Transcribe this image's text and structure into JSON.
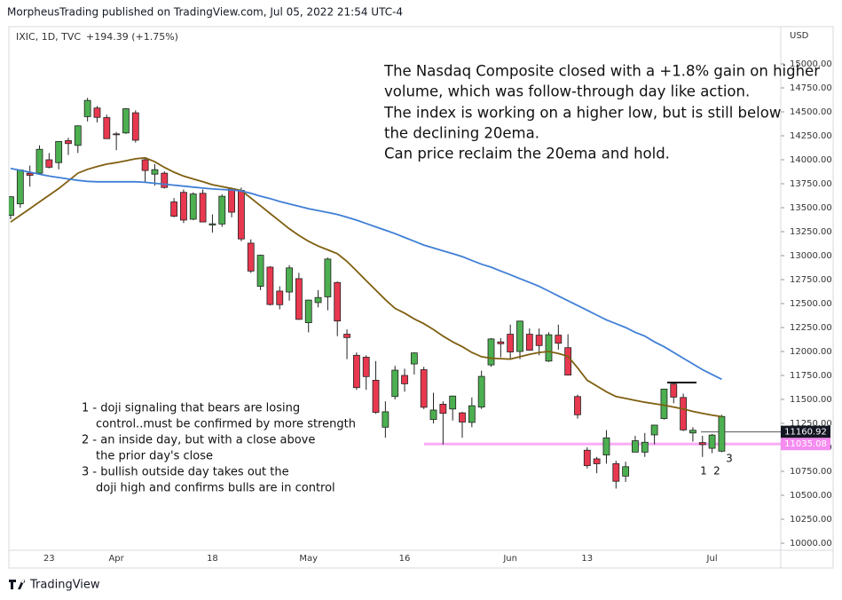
{
  "chart_data": {
    "type": "candlestick",
    "header": "MorpheusTrading published on TradingView.com, Jul 05, 2022 21:54 UTC-4",
    "symbol": "IXIC, 1D, TVC",
    "change": "+194.39 (+1.75%)",
    "currency": "USD",
    "footer": "TradingView",
    "commentary": [
      "The Nasdaq Composite closed with a +1.8% gain on higher",
      "volume, which was follow-through day like action.",
      "The index is working on a higher low, but is still below",
      "the declining 20ema.",
      " Can price reclaim the 20ema and hold."
    ],
    "notes": [
      "1 - doji signaling that bears are losing",
      "control..must be confirmed by more strength",
      "2 - an inside day, but with a close above",
      "the prior day's close",
      "3 - bullish outside day takes out the",
      "doji high and confirms bulls are in control"
    ],
    "markers": [
      "1",
      "2",
      "3"
    ],
    "categories": [
      null,
      null,
      null,
      null,
      "23",
      null,
      null,
      null,
      null,
      null,
      null,
      "Apr",
      null,
      null,
      null,
      null,
      null,
      null,
      null,
      null,
      null,
      "18",
      null,
      null,
      null,
      null,
      null,
      null,
      null,
      null,
      null,
      "May",
      null,
      null,
      null,
      null,
      null,
      null,
      null,
      null,
      null,
      "16",
      null,
      null,
      null,
      null,
      null,
      null,
      null,
      null,
      null,
      null,
      "Jun",
      null,
      null,
      null,
      null,
      null,
      null,
      null,
      "13",
      null,
      null,
      null,
      null,
      null,
      null,
      null,
      null,
      null,
      null,
      null,
      null,
      "Jul",
      null
    ],
    "open": [
      13420,
      13540,
      13860,
      13860,
      14000,
      13970,
      14200,
      14150,
      14450,
      14540,
      14440,
      14270,
      14280,
      14490,
      14000,
      13850,
      13860,
      13560,
      13660,
      13380,
      13650,
      13320,
      13330,
      13700,
      13680,
      13130,
      12680,
      12880,
      12630,
      12620,
      12760,
      12300,
      12510,
      12570,
      12720,
      12180,
      11960,
      11940,
      11700,
      11210,
      11530,
      11750,
      11870,
      11810,
      11290,
      11450,
      11400,
      11360,
      11260,
      11420,
      11860,
      12100,
      12180,
      12000,
      12180,
      12170,
      11900,
      12170,
      12040,
      11530,
      10970,
      10880,
      10920,
      10830,
      10700,
      10950,
      10950,
      11130,
      11300,
      11660,
      11520,
      11150,
      11050,
      10990,
      10960
    ],
    "high": [
      13620,
      13900,
      13940,
      14150,
      14070,
      14195,
      14230,
      14360,
      14646,
      14560,
      14470,
      14290,
      14540,
      14515,
      14020,
      13955,
      13880,
      13600,
      13690,
      13660,
      13690,
      13430,
      13640,
      13710,
      13710,
      13170,
      13010,
      12890,
      12680,
      12900,
      12820,
      12540,
      12640,
      12980,
      12730,
      12230,
      11990,
      11960,
      11900,
      11480,
      11850,
      11820,
      11990,
      11840,
      11570,
      11480,
      11540,
      11370,
      11520,
      11800,
      12140,
      12140,
      12280,
      12320,
      12240,
      12240,
      12200,
      12280,
      12180,
      11550,
      11000,
      10900,
      11180,
      10860,
      10850,
      11120,
      11150,
      11230,
      11610,
      11670,
      11560,
      11210,
      11120,
      11140,
      11340
    ],
    "low": [
      13380,
      13500,
      13720,
      13850,
      13910,
      13900,
      14050,
      14070,
      14400,
      14390,
      14220,
      14100,
      14270,
      14180,
      13760,
      13730,
      13700,
      13400,
      13340,
      13370,
      13350,
      13240,
      13300,
      13400,
      13150,
      12820,
      12640,
      12480,
      12440,
      12530,
      12330,
      12200,
      12460,
      12430,
      12160,
      11920,
      11600,
      11600,
      11350,
      11100,
      11500,
      11580,
      11760,
      11400,
      11250,
      11030,
      11280,
      11100,
      11210,
      11400,
      11840,
      11940,
      11920,
      11920,
      12010,
      11960,
      11890,
      12020,
      11750,
      11300,
      10780,
      10730,
      10830,
      10570,
      10640,
      10950,
      10900,
      11030,
      11290,
      11460,
      11170,
      11060,
      10900,
      10940,
      10950
    ],
    "close": [
      13614,
      13893,
      13838,
      14109,
      13922,
      14191,
      14169,
      14354,
      14619,
      14442,
      14220,
      14261,
      14532,
      14204,
      13888,
      13897,
      13711,
      13411,
      13371,
      13643,
      13351,
      13332,
      13619,
      13453,
      13174,
      12839,
      13004,
      12490,
      12488,
      12872,
      12335,
      12536,
      12563,
      12964,
      12318,
      12145,
      11623,
      11738,
      11364,
      11371,
      11805,
      11663,
      11985,
      11418,
      11389,
      11355,
      11535,
      11264,
      11434,
      11740,
      12131,
      12081,
      11995,
      12317,
      12013,
      12062,
      12175,
      12086,
      11754,
      11340,
      10809,
      10829,
      11099,
      10646,
      10798,
      11069,
      11053,
      11232,
      11608,
      11524,
      11182,
      11178,
      11029,
      11128,
      11322
    ],
    "up_color": "#4caf50",
    "down_color": "#e8384f",
    "lines": [
      {
        "color": "#7f5f10",
        "values": [
          13350,
          13420,
          13490,
          13560,
          13630,
          13700,
          13780,
          13860,
          13900,
          13930,
          13955,
          13970,
          13990,
          14010,
          14020,
          13980,
          13920,
          13870,
          13830,
          13800,
          13770,
          13740,
          13720,
          13700,
          13680,
          13600,
          13520,
          13440,
          13360,
          13280,
          13210,
          13150,
          13100,
          13060,
          13020,
          12940,
          12840,
          12740,
          12640,
          12540,
          12450,
          12400,
          12340,
          12290,
          12230,
          12160,
          12100,
          12050,
          11990,
          11945,
          11930,
          11925,
          11920,
          11945,
          11970,
          11990,
          12000,
          11980,
          11950,
          11830,
          11700,
          11640,
          11580,
          11530,
          11510,
          11490,
          11470,
          11455,
          11440,
          11420,
          11400,
          11375,
          11355,
          11335,
          11320
        ]
      },
      {
        "color": "#3f7fd6",
        "values": [
          13910,
          13890,
          13870,
          13850,
          13830,
          13815,
          13800,
          13785,
          13775,
          13770,
          13770,
          13770,
          13770,
          13770,
          13765,
          13755,
          13745,
          13735,
          13725,
          13715,
          13705,
          13695,
          13690,
          13685,
          13675,
          13650,
          13620,
          13595,
          13565,
          13540,
          13515,
          13490,
          13470,
          13450,
          13430,
          13400,
          13370,
          13335,
          13300,
          13265,
          13230,
          13190,
          13150,
          13110,
          13080,
          13050,
          13020,
          12990,
          12950,
          12910,
          12880,
          12840,
          12800,
          12760,
          12720,
          12680,
          12630,
          12580,
          12530,
          12480,
          12430,
          12380,
          12330,
          12290,
          12250,
          12200,
          12160,
          12100,
          12050,
          11990,
          11930,
          11870,
          11810,
          11760,
          11710
        ]
      }
    ],
    "price_labels": [
      {
        "value": 11160.92,
        "color": "#131722"
      },
      {
        "value": 11035.08,
        "color": "#f58cf0"
      }
    ],
    "resistance": 11676,
    "ylim": [
      10000,
      15000
    ],
    "yticks": [
      {
        "value": 10000,
        "label": "10000.00"
      },
      {
        "value": 10250,
        "label": "10250.00"
      },
      {
        "value": 10500,
        "label": "10500.00"
      },
      {
        "value": 10750,
        "label": "10750.00"
      },
      {
        "value": 11000,
        "label": "11000.00"
      },
      {
        "value": 11250,
        "label": "11250.00"
      },
      {
        "value": 11500,
        "label": "11500.00"
      },
      {
        "value": 11750,
        "label": "11750.00"
      },
      {
        "value": 12000,
        "label": "12000.00"
      },
      {
        "value": 12250,
        "label": "12250.00"
      },
      {
        "value": 12500,
        "label": "12500.00"
      },
      {
        "value": 12750,
        "label": "12750.00"
      },
      {
        "value": 13000,
        "label": "13000.00"
      },
      {
        "value": 13250,
        "label": "13250.00"
      },
      {
        "value": 13500,
        "label": "13500.00"
      },
      {
        "value": 13750,
        "label": "13750.00"
      },
      {
        "value": 14000,
        "label": "14000.00"
      },
      {
        "value": 14250,
        "label": "14250.00"
      },
      {
        "value": 14500,
        "label": "14500.00"
      },
      {
        "value": 14750,
        "label": "14750.00"
      },
      {
        "value": 15000,
        "label": "15000.00"
      }
    ]
  }
}
